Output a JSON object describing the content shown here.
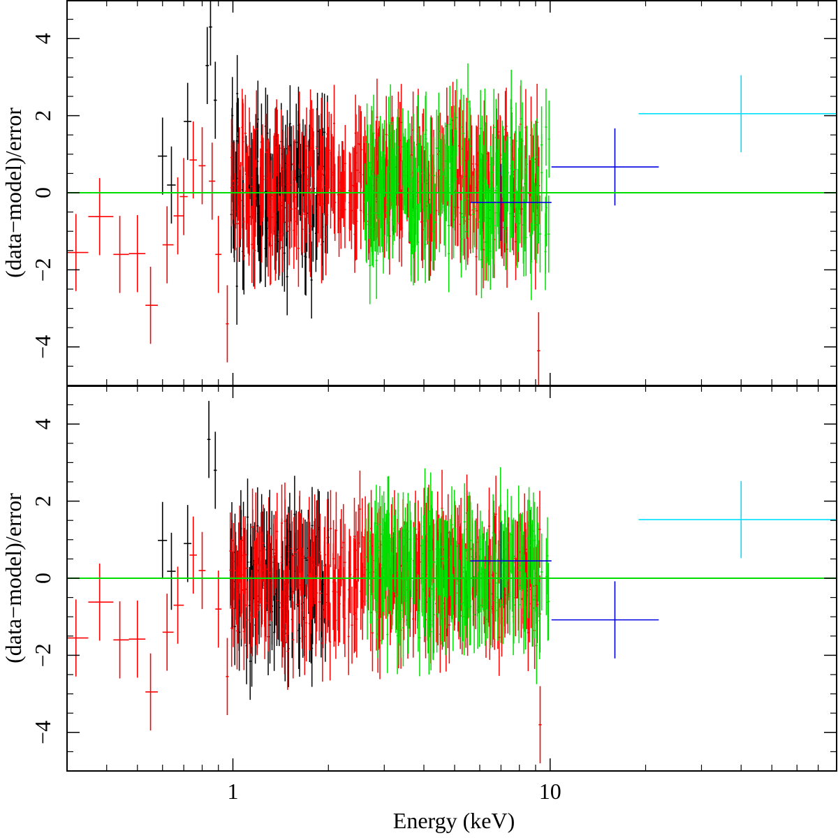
{
  "chart_data": {
    "type": "scatter",
    "shared_x": {
      "label": "Energy (keV)",
      "scale": "log",
      "range": [
        0.3,
        80
      ],
      "tick_labels": [
        "1",
        "10"
      ],
      "major_ticks": [
        1,
        10
      ],
      "minor_ticks": [
        0.3,
        0.4,
        0.5,
        0.6,
        0.7,
        0.8,
        0.9,
        2,
        3,
        4,
        5,
        6,
        7,
        8,
        9,
        20,
        30,
        40,
        50,
        60,
        70
      ]
    },
    "series_colors": {
      "black": "#000000",
      "red": "#ff0000",
      "green": "#00e000",
      "blue": "#0000e0",
      "cyan": "#00e0ff",
      "zero_line": "#00dd00"
    },
    "panels": [
      {
        "ylabel": "(data−model)/error",
        "ylim": [
          -5,
          5
        ],
        "y_tick_labels": [
          "−4",
          "−2",
          "0",
          "2",
          "4"
        ],
        "y_ticks": [
          -4,
          -2,
          0,
          2,
          4
        ],
        "reference_line": 0,
        "series": [
          {
            "name": "red",
            "points": [
              {
                "x": 0.32,
                "xlo": 0.3,
                "xhi": 0.35,
                "y": -1.55,
                "yerr": 1.0
              },
              {
                "x": 0.38,
                "xlo": 0.35,
                "xhi": 0.42,
                "y": -0.62,
                "yerr": 1.0
              },
              {
                "x": 0.44,
                "xlo": 0.42,
                "xhi": 0.47,
                "y": -1.6,
                "yerr": 1.0
              },
              {
                "x": 0.5,
                "xlo": 0.47,
                "xhi": 0.53,
                "y": -1.58,
                "yerr": 1.0
              },
              {
                "x": 0.55,
                "xlo": 0.53,
                "xhi": 0.58,
                "y": -2.92,
                "yerr": 1.0
              },
              {
                "x": 0.62,
                "xlo": 0.6,
                "xhi": 0.65,
                "y": -1.35,
                "yerr": 1.0
              },
              {
                "x": 0.67,
                "xlo": 0.65,
                "xhi": 0.7,
                "y": -0.6,
                "yerr": 1.0
              },
              {
                "x": 0.7,
                "xlo": 0.68,
                "xhi": 0.72,
                "y": -0.1,
                "yerr": 1.0
              },
              {
                "x": 0.75,
                "xlo": 0.73,
                "xhi": 0.77,
                "y": 0.85,
                "yerr": 1.0
              },
              {
                "x": 0.8,
                "xlo": 0.78,
                "xhi": 0.82,
                "y": 0.7,
                "yerr": 1.0
              },
              {
                "x": 0.86,
                "xlo": 0.84,
                "xhi": 0.88,
                "y": 0.3,
                "yerr": 1.0
              },
              {
                "x": 0.9,
                "xlo": 0.88,
                "xhi": 0.92,
                "y": -1.6,
                "yerr": 1.0
              },
              {
                "x": 0.96,
                "xlo": 0.95,
                "xhi": 0.97,
                "y": -3.4,
                "yerr": 1.0
              },
              {
                "x": 9.2,
                "xlo": 9.1,
                "xhi": 9.3,
                "y": -4.1,
                "yerr": 1.0
              }
            ]
          },
          {
            "name": "black",
            "points": [
              {
                "x": 0.6,
                "xlo": 0.58,
                "xhi": 0.62,
                "y": 0.95,
                "yerr": 1.0
              },
              {
                "x": 0.64,
                "xlo": 0.62,
                "xhi": 0.66,
                "y": 0.2,
                "yerr": 1.0
              },
              {
                "x": 0.72,
                "xlo": 0.7,
                "xhi": 0.74,
                "y": 1.85,
                "yerr": 1.0
              },
              {
                "x": 0.83,
                "xlo": 0.82,
                "xhi": 0.84,
                "y": 3.3,
                "yerr": 1.0
              },
              {
                "x": 0.85,
                "xlo": 0.84,
                "xhi": 0.86,
                "y": 4.3,
                "yerr": 1.0
              },
              {
                "x": 0.88,
                "xlo": 0.87,
                "xhi": 0.89,
                "y": 2.4,
                "yerr": 1.0
              }
            ]
          },
          {
            "name": "blue",
            "points": [
              {
                "x": 7.0,
                "xlo": 5.6,
                "xhi": 10.1,
                "y": -0.25,
                "yerr": 1.0
              },
              {
                "x": 16.0,
                "xlo": 10.1,
                "xhi": 22.0,
                "y": 0.67,
                "yerr": 1.0
              }
            ]
          },
          {
            "name": "cyan",
            "points": [
              {
                "x": 40.0,
                "xlo": 19.0,
                "xhi": 80.0,
                "y": 2.05,
                "yerr": 1.0
              }
            ]
          }
        ],
        "dense_bands": [
          {
            "name": "black",
            "xmin": 0.98,
            "xmax": 2.0,
            "n": 140,
            "mean": 0.0,
            "spread": 1.8,
            "seed": 11
          },
          {
            "name": "red",
            "xmin": 0.98,
            "xmax": 9.3,
            "n": 420,
            "mean": 0.2,
            "spread": 1.5,
            "seed": 23
          },
          {
            "name": "green",
            "xmin": 2.6,
            "xmax": 10.0,
            "n": 240,
            "mean": 0.0,
            "spread": 1.7,
            "seed": 37
          }
        ]
      },
      {
        "ylabel": "(data−model)/error",
        "ylim": [
          -5,
          5
        ],
        "y_tick_labels": [
          "−4",
          "−2",
          "0",
          "2",
          "4"
        ],
        "y_ticks": [
          -4,
          -2,
          0,
          2,
          4
        ],
        "reference_line": 0,
        "series": [
          {
            "name": "red",
            "points": [
              {
                "x": 0.32,
                "xlo": 0.3,
                "xhi": 0.35,
                "y": -1.55,
                "yerr": 1.0
              },
              {
                "x": 0.38,
                "xlo": 0.35,
                "xhi": 0.42,
                "y": -0.62,
                "yerr": 1.0
              },
              {
                "x": 0.44,
                "xlo": 0.42,
                "xhi": 0.47,
                "y": -1.6,
                "yerr": 1.0
              },
              {
                "x": 0.5,
                "xlo": 0.47,
                "xhi": 0.53,
                "y": -1.58,
                "yerr": 1.0
              },
              {
                "x": 0.55,
                "xlo": 0.53,
                "xhi": 0.58,
                "y": -2.95,
                "yerr": 1.0
              },
              {
                "x": 0.62,
                "xlo": 0.6,
                "xhi": 0.65,
                "y": -1.4,
                "yerr": 1.0
              },
              {
                "x": 0.67,
                "xlo": 0.65,
                "xhi": 0.7,
                "y": -0.7,
                "yerr": 1.0
              },
              {
                "x": 0.75,
                "xlo": 0.73,
                "xhi": 0.77,
                "y": 0.6,
                "yerr": 1.0
              },
              {
                "x": 0.8,
                "xlo": 0.78,
                "xhi": 0.82,
                "y": 0.2,
                "yerr": 1.0
              },
              {
                "x": 0.9,
                "xlo": 0.88,
                "xhi": 0.92,
                "y": -0.8,
                "yerr": 1.0
              },
              {
                "x": 0.96,
                "xlo": 0.95,
                "xhi": 0.97,
                "y": -2.55,
                "yerr": 1.0
              },
              {
                "x": 9.3,
                "xlo": 9.2,
                "xhi": 9.4,
                "y": -3.8,
                "yerr": 1.0
              }
            ]
          },
          {
            "name": "black",
            "points": [
              {
                "x": 0.6,
                "xlo": 0.58,
                "xhi": 0.62,
                "y": 0.98,
                "yerr": 1.0
              },
              {
                "x": 0.64,
                "xlo": 0.62,
                "xhi": 0.66,
                "y": 0.18,
                "yerr": 1.0
              },
              {
                "x": 0.72,
                "xlo": 0.7,
                "xhi": 0.74,
                "y": 0.9,
                "yerr": 1.0
              },
              {
                "x": 0.84,
                "xlo": 0.83,
                "xhi": 0.85,
                "y": 3.6,
                "yerr": 1.0
              },
              {
                "x": 0.88,
                "xlo": 0.87,
                "xhi": 0.89,
                "y": 2.8,
                "yerr": 1.0
              }
            ]
          },
          {
            "name": "blue",
            "points": [
              {
                "x": 7.0,
                "xlo": 5.6,
                "xhi": 10.1,
                "y": 0.45,
                "yerr": 1.0
              },
              {
                "x": 16.0,
                "xlo": 10.1,
                "xhi": 22.0,
                "y": -1.08,
                "yerr": 1.0
              }
            ]
          },
          {
            "name": "cyan",
            "points": [
              {
                "x": 40.0,
                "xlo": 19.0,
                "xhi": 80.0,
                "y": 1.52,
                "yerr": 1.0
              }
            ]
          }
        ],
        "dense_bands": [
          {
            "name": "black",
            "xmin": 0.98,
            "xmax": 2.0,
            "n": 140,
            "mean": 0.0,
            "spread": 1.8,
            "seed": 53
          },
          {
            "name": "red",
            "xmin": 0.98,
            "xmax": 9.3,
            "n": 420,
            "mean": 0.0,
            "spread": 1.4,
            "seed": 71
          },
          {
            "name": "green",
            "xmin": 2.6,
            "xmax": 10.0,
            "n": 240,
            "mean": 0.1,
            "spread": 1.5,
            "seed": 89
          }
        ]
      }
    ]
  }
}
